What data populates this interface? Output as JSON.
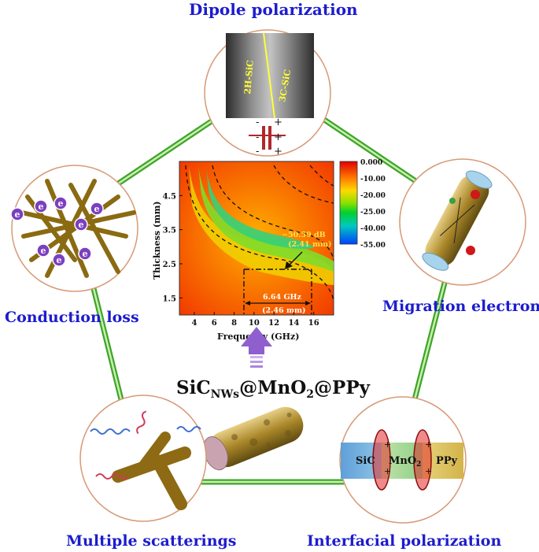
{
  "labels": {
    "top": "Dipole polarization",
    "left": "Conduction loss",
    "right": "Migration electron",
    "bottom_left": "Multiple scatterings",
    "bottom_right": "Interfacial polarization"
  },
  "center_material": {
    "base": "SiC",
    "sub": "NWs",
    "rest": "@MnO",
    "sub2": "2",
    "rest2": "@PPy"
  },
  "dipole": {
    "phase_left": "2H-SiC",
    "phase_right": "3C-SiC",
    "plus": "+",
    "minus": "-"
  },
  "electron_symbol": "e",
  "interface": {
    "layers": [
      "SiC",
      "MnO",
      "PPy"
    ],
    "mno_sub": "2",
    "charge": "+"
  },
  "colors": {
    "label_blue": "#1c1ccf",
    "pentagon_green": "#3fa52a",
    "circle_border": "#d79a77",
    "arrow_purple": "#8f5fd0"
  },
  "chart_data": {
    "type": "heatmap",
    "xlabel": "Frequency (GHz)",
    "ylabel": "Thickness (mm)",
    "x_ticks": [
      "4",
      "6",
      "8",
      "10",
      "12",
      "14",
      "16"
    ],
    "y_ticks": [
      "1.5",
      "2.5",
      "3.5",
      "4.5"
    ],
    "xlim": [
      2.5,
      18
    ],
    "ylim": [
      1.0,
      5.5
    ],
    "colorbar": {
      "ticks": [
        "0.000",
        "-10.00",
        "-20.00",
        "-25.00",
        "-40.00",
        "-55.00"
      ],
      "range": [
        -55,
        0
      ]
    },
    "annotations": {
      "min_rl": "−50.59 dB",
      "min_thickness": "(2.41 mm)",
      "bandwidth": "6.64 GHz",
      "bandwidth_thickness": "(2.46 mm)"
    },
    "min_point": {
      "x": 13.0,
      "y": 2.41
    },
    "bandwidth_range": [
      8.84,
      15.48
    ]
  }
}
